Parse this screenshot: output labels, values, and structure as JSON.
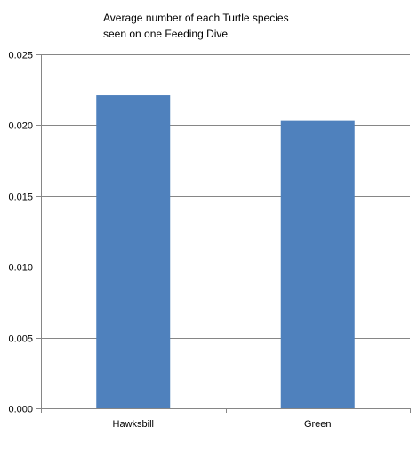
{
  "chart_data": {
    "type": "bar",
    "title_lines": [
      "Average number of  each Turtle species",
      "seen on one Feeding Dive"
    ],
    "categories": [
      "Hawksbill",
      "Green"
    ],
    "values": [
      0.0221,
      0.0203
    ],
    "ylim": [
      0,
      0.025
    ],
    "yticks": [
      0.0,
      0.005,
      0.01,
      0.015,
      0.02,
      0.025
    ],
    "ytick_labels": [
      "0.000",
      "0.005",
      "0.010",
      "0.015",
      "0.020",
      "0.025"
    ],
    "xlabel": "",
    "ylabel": "",
    "grid": true,
    "legend": "none",
    "bar_color": "#4F81BD",
    "grid_color": "#868686",
    "axis_color": "#868686"
  }
}
